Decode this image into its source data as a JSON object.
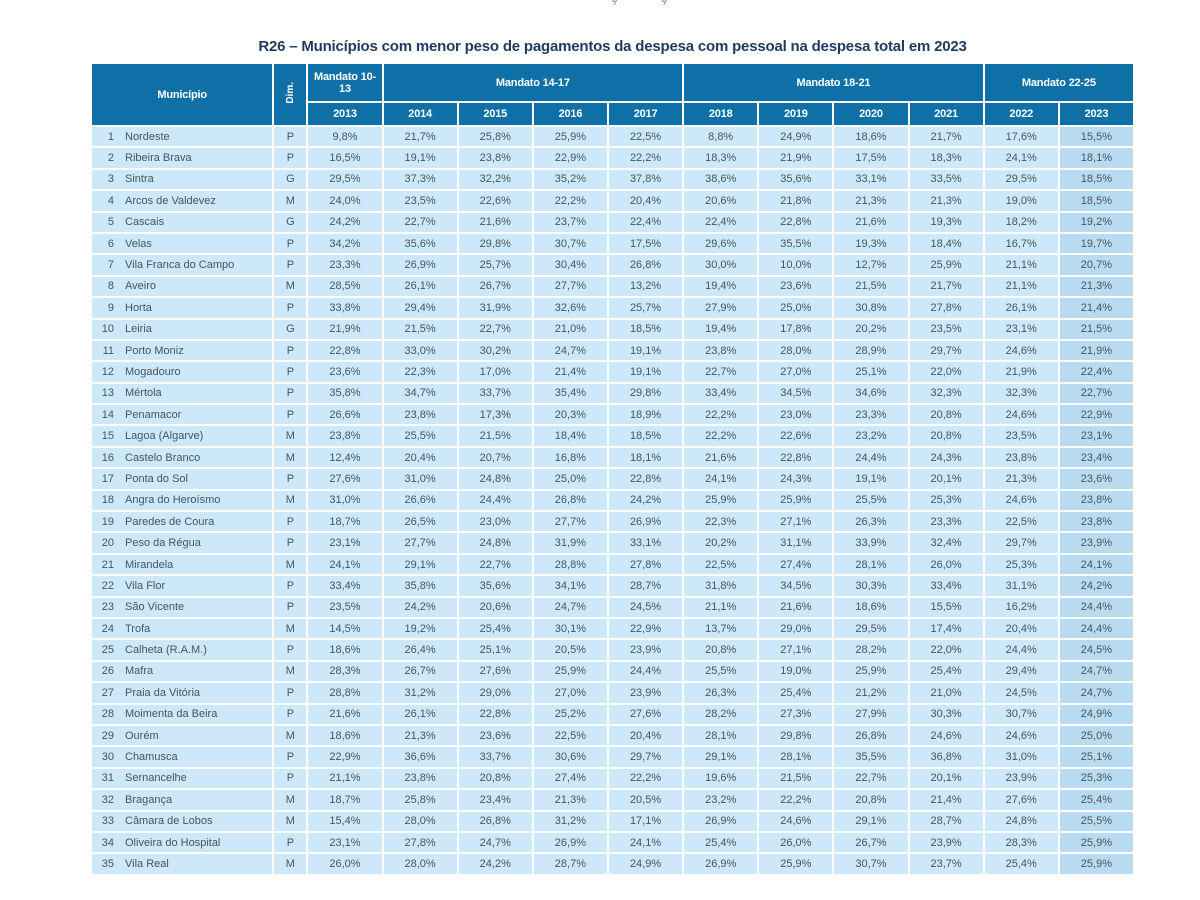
{
  "page": {
    "top_fragments": [
      "ç",
      "ç"
    ]
  },
  "title": "R26 – Municípios com menor peso de pagamentos da despesa com pessoal na despesa total em 2023",
  "colors": {
    "header_blue": "#0e70a6",
    "row_blue": "#cde9f9",
    "highlight_blue": "#b9dbf1",
    "title_navy": "#1e3a5f"
  },
  "table": {
    "col_municipio": "Município",
    "col_dim": "Dim.",
    "highlight_year": "2023",
    "groups": [
      {
        "label": "Mandato 10-13",
        "years": [
          "2013"
        ]
      },
      {
        "label": "Mandato 14-17",
        "years": [
          "2014",
          "2015",
          "2016",
          "2017"
        ]
      },
      {
        "label": "Mandato 18-21",
        "years": [
          "2018",
          "2019",
          "2020",
          "2021"
        ]
      },
      {
        "label": "Mandato 22-25",
        "years": [
          "2022",
          "2023"
        ]
      }
    ],
    "rows": [
      {
        "rank": "1",
        "municipio": "Nordeste",
        "dim": "P",
        "values": [
          "9,8%",
          "21,7%",
          "25,8%",
          "25,9%",
          "22,5%",
          "8,8%",
          "24,9%",
          "18,6%",
          "21,7%",
          "17,6%",
          "15,5%"
        ]
      },
      {
        "rank": "2",
        "municipio": "Ribeira Brava",
        "dim": "P",
        "values": [
          "16,5%",
          "19,1%",
          "23,8%",
          "22,9%",
          "22,2%",
          "18,3%",
          "21,9%",
          "17,5%",
          "18,3%",
          "24,1%",
          "18,1%"
        ]
      },
      {
        "rank": "3",
        "municipio": "Sintra",
        "dim": "G",
        "values": [
          "29,5%",
          "37,3%",
          "32,2%",
          "35,2%",
          "37,8%",
          "38,6%",
          "35,6%",
          "33,1%",
          "33,5%",
          "29,5%",
          "18,5%"
        ]
      },
      {
        "rank": "4",
        "municipio": "Arcos de Valdevez",
        "dim": "M",
        "values": [
          "24,0%",
          "23,5%",
          "22,6%",
          "22,2%",
          "20,4%",
          "20,6%",
          "21,8%",
          "21,3%",
          "21,3%",
          "19,0%",
          "18,5%"
        ]
      },
      {
        "rank": "5",
        "municipio": "Cascais",
        "dim": "G",
        "values": [
          "24,2%",
          "22,7%",
          "21,6%",
          "23,7%",
          "22,4%",
          "22,4%",
          "22,8%",
          "21,6%",
          "19,3%",
          "18,2%",
          "19,2%"
        ]
      },
      {
        "rank": "6",
        "municipio": "Velas",
        "dim": "P",
        "values": [
          "34,2%",
          "35,6%",
          "29,8%",
          "30,7%",
          "17,5%",
          "29,6%",
          "35,5%",
          "19,3%",
          "18,4%",
          "16,7%",
          "19,7%"
        ]
      },
      {
        "rank": "7",
        "municipio": "Vila Franca do Campo",
        "dim": "P",
        "values": [
          "23,3%",
          "26,9%",
          "25,7%",
          "30,4%",
          "26,8%",
          "30,0%",
          "10,0%",
          "12,7%",
          "25,9%",
          "21,1%",
          "20,7%"
        ]
      },
      {
        "rank": "8",
        "municipio": "Aveiro",
        "dim": "M",
        "values": [
          "28,5%",
          "26,1%",
          "26,7%",
          "27,7%",
          "13,2%",
          "19,4%",
          "23,6%",
          "21,5%",
          "21,7%",
          "21,1%",
          "21,3%"
        ]
      },
      {
        "rank": "9",
        "municipio": "Horta",
        "dim": "P",
        "values": [
          "33,8%",
          "29,4%",
          "31,9%",
          "32,6%",
          "25,7%",
          "27,9%",
          "25,0%",
          "30,8%",
          "27,8%",
          "26,1%",
          "21,4%"
        ]
      },
      {
        "rank": "10",
        "municipio": "Leiria",
        "dim": "G",
        "values": [
          "21,9%",
          "21,5%",
          "22,7%",
          "21,0%",
          "18,5%",
          "19,4%",
          "17,8%",
          "20,2%",
          "23,5%",
          "23,1%",
          "21,5%"
        ]
      },
      {
        "rank": "11",
        "municipio": "Porto Moniz",
        "dim": "P",
        "values": [
          "22,8%",
          "33,0%",
          "30,2%",
          "24,7%",
          "19,1%",
          "23,8%",
          "28,0%",
          "28,9%",
          "29,7%",
          "24,6%",
          "21,9%"
        ]
      },
      {
        "rank": "12",
        "municipio": "Mogadouro",
        "dim": "P",
        "values": [
          "23,6%",
          "22,3%",
          "17,0%",
          "21,4%",
          "19,1%",
          "22,7%",
          "27,0%",
          "25,1%",
          "22,0%",
          "21,9%",
          "22,4%"
        ]
      },
      {
        "rank": "13",
        "municipio": "Mértola",
        "dim": "P",
        "values": [
          "35,8%",
          "34,7%",
          "33,7%",
          "35,4%",
          "29,8%",
          "33,4%",
          "34,5%",
          "34,6%",
          "32,3%",
          "32,3%",
          "22,7%"
        ]
      },
      {
        "rank": "14",
        "municipio": "Penamacor",
        "dim": "P",
        "values": [
          "26,6%",
          "23,8%",
          "17,3%",
          "20,3%",
          "18,9%",
          "22,2%",
          "23,0%",
          "23,3%",
          "20,8%",
          "24,6%",
          "22,9%"
        ]
      },
      {
        "rank": "15",
        "municipio": "Lagoa (Algarve)",
        "dim": "M",
        "values": [
          "23,8%",
          "25,5%",
          "21,5%",
          "18,4%",
          "18,5%",
          "22,2%",
          "22,6%",
          "23,2%",
          "20,8%",
          "23,5%",
          "23,1%"
        ]
      },
      {
        "rank": "16",
        "municipio": "Castelo Branco",
        "dim": "M",
        "values": [
          "12,4%",
          "20,4%",
          "20,7%",
          "16,8%",
          "18,1%",
          "21,6%",
          "22,8%",
          "24,4%",
          "24,3%",
          "23,8%",
          "23,4%"
        ]
      },
      {
        "rank": "17",
        "municipio": "Ponta do Sol",
        "dim": "P",
        "values": [
          "27,6%",
          "31,0%",
          "24,8%",
          "25,0%",
          "22,8%",
          "24,1%",
          "24,3%",
          "19,1%",
          "20,1%",
          "21,3%",
          "23,6%"
        ]
      },
      {
        "rank": "18",
        "municipio": "Angra do Heroísmo",
        "dim": "M",
        "values": [
          "31,0%",
          "26,6%",
          "24,4%",
          "26,8%",
          "24,2%",
          "25,9%",
          "25,9%",
          "25,5%",
          "25,3%",
          "24,6%",
          "23,8%"
        ]
      },
      {
        "rank": "19",
        "municipio": "Paredes de Coura",
        "dim": "P",
        "values": [
          "18,7%",
          "26,5%",
          "23,0%",
          "27,7%",
          "26,9%",
          "22,3%",
          "27,1%",
          "26,3%",
          "23,3%",
          "22,5%",
          "23,8%"
        ]
      },
      {
        "rank": "20",
        "municipio": "Peso da Régua",
        "dim": "P",
        "values": [
          "23,1%",
          "27,7%",
          "24,8%",
          "31,9%",
          "33,1%",
          "20,2%",
          "31,1%",
          "33,9%",
          "32,4%",
          "29,7%",
          "23,9%"
        ]
      },
      {
        "rank": "21",
        "municipio": "Mirandela",
        "dim": "M",
        "values": [
          "24,1%",
          "29,1%",
          "22,7%",
          "28,8%",
          "27,8%",
          "22,5%",
          "27,4%",
          "28,1%",
          "26,0%",
          "25,3%",
          "24,1%"
        ]
      },
      {
        "rank": "22",
        "municipio": "Vila Flor",
        "dim": "P",
        "values": [
          "33,4%",
          "35,8%",
          "35,6%",
          "34,1%",
          "28,7%",
          "31,8%",
          "34,5%",
          "30,3%",
          "33,4%",
          "31,1%",
          "24,2%"
        ]
      },
      {
        "rank": "23",
        "municipio": "São Vicente",
        "dim": "P",
        "values": [
          "23,5%",
          "24,2%",
          "20,6%",
          "24,7%",
          "24,5%",
          "21,1%",
          "21,6%",
          "18,6%",
          "15,5%",
          "16,2%",
          "24,4%"
        ]
      },
      {
        "rank": "24",
        "municipio": "Trofa",
        "dim": "M",
        "values": [
          "14,5%",
          "19,2%",
          "25,4%",
          "30,1%",
          "22,9%",
          "13,7%",
          "29,0%",
          "29,5%",
          "17,4%",
          "20,4%",
          "24,4%"
        ]
      },
      {
        "rank": "25",
        "municipio": "Calheta (R.A.M.)",
        "dim": "P",
        "values": [
          "18,6%",
          "26,4%",
          "25,1%",
          "20,5%",
          "23,9%",
          "20,8%",
          "27,1%",
          "28,2%",
          "22,0%",
          "24,4%",
          "24,5%"
        ]
      },
      {
        "rank": "26",
        "municipio": "Mafra",
        "dim": "M",
        "values": [
          "28,3%",
          "26,7%",
          "27,6%",
          "25,9%",
          "24,4%",
          "25,5%",
          "19,0%",
          "25,9%",
          "25,4%",
          "29,4%",
          "24,7%"
        ]
      },
      {
        "rank": "27",
        "municipio": "Praia da Vitória",
        "dim": "P",
        "values": [
          "28,8%",
          "31,2%",
          "29,0%",
          "27,0%",
          "23,9%",
          "26,3%",
          "25,4%",
          "21,2%",
          "21,0%",
          "24,5%",
          "24,7%"
        ]
      },
      {
        "rank": "28",
        "municipio": "Moimenta da Beira",
        "dim": "P",
        "values": [
          "21,6%",
          "26,1%",
          "22,8%",
          "25,2%",
          "27,6%",
          "28,2%",
          "27,3%",
          "27,9%",
          "30,3%",
          "30,7%",
          "24,9%"
        ]
      },
      {
        "rank": "29",
        "municipio": "Ourém",
        "dim": "M",
        "values": [
          "18,6%",
          "21,3%",
          "23,6%",
          "22,5%",
          "20,4%",
          "28,1%",
          "29,8%",
          "26,8%",
          "24,6%",
          "24,6%",
          "25,0%"
        ]
      },
      {
        "rank": "30",
        "municipio": "Chamusca",
        "dim": "P",
        "values": [
          "22,9%",
          "36,6%",
          "33,7%",
          "30,6%",
          "29,7%",
          "29,1%",
          "28,1%",
          "35,5%",
          "36,8%",
          "31,0%",
          "25,1%"
        ]
      },
      {
        "rank": "31",
        "municipio": "Sernancelhe",
        "dim": "P",
        "values": [
          "21,1%",
          "23,8%",
          "20,8%",
          "27,4%",
          "22,2%",
          "19,6%",
          "21,5%",
          "22,7%",
          "20,1%",
          "23,9%",
          "25,3%"
        ]
      },
      {
        "rank": "32",
        "municipio": "Bragança",
        "dim": "M",
        "values": [
          "18,7%",
          "25,8%",
          "23,4%",
          "21,3%",
          "20,5%",
          "23,2%",
          "22,2%",
          "20,8%",
          "21,4%",
          "27,6%",
          "25,4%"
        ]
      },
      {
        "rank": "33",
        "municipio": "Câmara de Lobos",
        "dim": "M",
        "values": [
          "15,4%",
          "28,0%",
          "26,8%",
          "31,2%",
          "17,1%",
          "26,9%",
          "24,6%",
          "29,1%",
          "28,7%",
          "24,8%",
          "25,5%"
        ]
      },
      {
        "rank": "34",
        "municipio": "Oliveira do Hospital",
        "dim": "P",
        "values": [
          "23,1%",
          "27,8%",
          "24,7%",
          "26,9%",
          "24,1%",
          "25,4%",
          "26,0%",
          "26,7%",
          "23,9%",
          "28,3%",
          "25,9%"
        ]
      },
      {
        "rank": "35",
        "municipio": "Vila Real",
        "dim": "M",
        "values": [
          "26,0%",
          "28,0%",
          "24,2%",
          "28,7%",
          "24,9%",
          "26,9%",
          "25,9%",
          "30,7%",
          "23,7%",
          "25,4%",
          "25,9%"
        ]
      }
    ]
  }
}
